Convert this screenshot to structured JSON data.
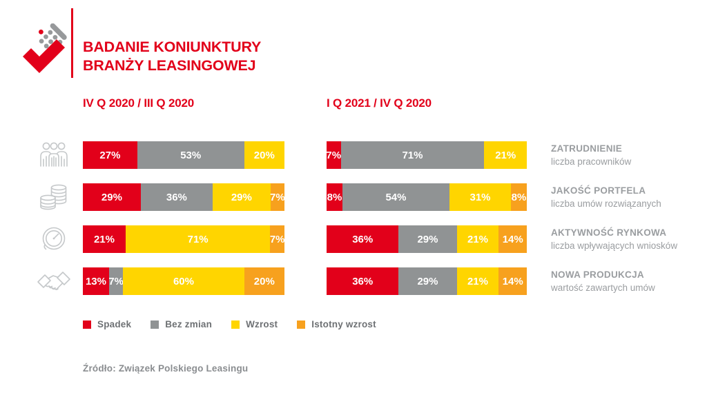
{
  "header": {
    "title_line1": "BADANIE KONIUNKTURY",
    "title_line2": "BRANŻY LEASINGOWEJ"
  },
  "brand": {
    "accent_color": "#e2001a",
    "logo": "zpl-check-calculator-logo"
  },
  "chart_data": {
    "type": "bar",
    "variant": "horizontal-stacked",
    "title": "BADANIE KONIUNKTURY BRANŻY LEASINGOWEJ",
    "unit": "%",
    "axes": "none",
    "legend_position": "bottom-left",
    "groups": [
      "IV Q 2020 / III Q 2020",
      "I Q 2021 / IV Q 2020"
    ],
    "segments": [
      "Spadek",
      "Bez zmian",
      "Wzrost",
      "Istotny wzrost"
    ],
    "segment_colors": [
      "#e2001a",
      "#909394",
      "#ffd500",
      "#f7a11e"
    ],
    "categories": [
      {
        "icon": "team-icon",
        "label": "ZATRUDNIENIE",
        "sublabel": "liczba pracowników"
      },
      {
        "icon": "coins-icon",
        "label": "JAKOŚĆ PORTFELA",
        "sublabel": "liczba umów rozwiązanych"
      },
      {
        "icon": "gauge-icon",
        "label": "AKTYWNOŚĆ RYNKOWA",
        "sublabel": "liczba wpływających wniosków"
      },
      {
        "icon": "handshake-icon",
        "label": "NOWA PRODUKCJA",
        "sublabel": "wartość zawartych umów"
      }
    ],
    "values": [
      [
        [
          27,
          53,
          20,
          0
        ],
        [
          29,
          36,
          29,
          7
        ],
        [
          21,
          0,
          71,
          7
        ],
        [
          13,
          7,
          60,
          20
        ]
      ],
      [
        [
          7,
          71,
          21,
          0
        ],
        [
          8,
          54,
          31,
          8
        ],
        [
          36,
          29,
          21,
          14
        ],
        [
          36,
          29,
          21,
          14
        ]
      ]
    ]
  },
  "source": "Źródło: Związek Polskiego Leasingu"
}
